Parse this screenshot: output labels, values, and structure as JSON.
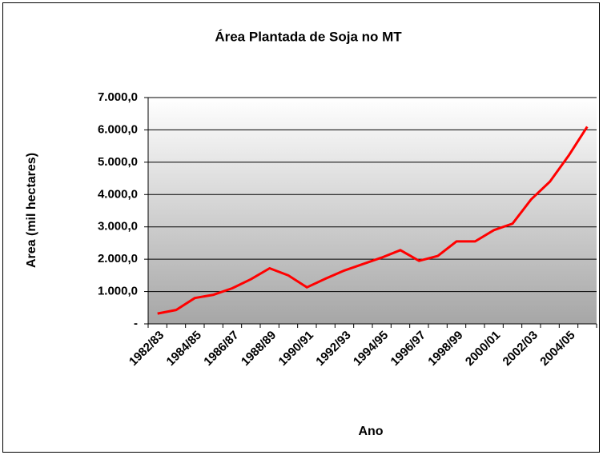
{
  "chart_data": {
    "type": "line",
    "title": "Área Plantada de Soja no MT",
    "x_label": "Ano",
    "y_label": "Area (mil hectares)",
    "categories": [
      "1982/83",
      null,
      "1984/85",
      null,
      "1986/87",
      null,
      "1988/89",
      null,
      "1990/91",
      null,
      "1992/93",
      null,
      "1994/95",
      null,
      "1996/97",
      null,
      "1998/99",
      null,
      "2000/01",
      null,
      "2002/03",
      null,
      "2004/05",
      null
    ],
    "series": [
      {
        "name": "Area",
        "color": "#ff0000",
        "values": [
          320,
          430,
          800,
          900,
          1100,
          1380,
          1720,
          1500,
          1130,
          1400,
          1650,
          1850,
          2050,
          2280,
          1950,
          2100,
          2550,
          2550,
          2900,
          3100,
          3850,
          4400,
          5200,
          6100
        ]
      }
    ],
    "ylim": [
      0,
      7000
    ],
    "yticks": [
      {
        "value": 0,
        "label": "-"
      },
      {
        "value": 1000,
        "label": "1.000,0"
      },
      {
        "value": 2000,
        "label": "2.000,0"
      },
      {
        "value": 3000,
        "label": "3.000,0"
      },
      {
        "value": 4000,
        "label": "4.000,0"
      },
      {
        "value": 5000,
        "label": "5.000,0"
      },
      {
        "value": 6000,
        "label": "6.000,0"
      },
      {
        "value": 7000,
        "label": "7.000,0"
      }
    ],
    "grid": true
  }
}
